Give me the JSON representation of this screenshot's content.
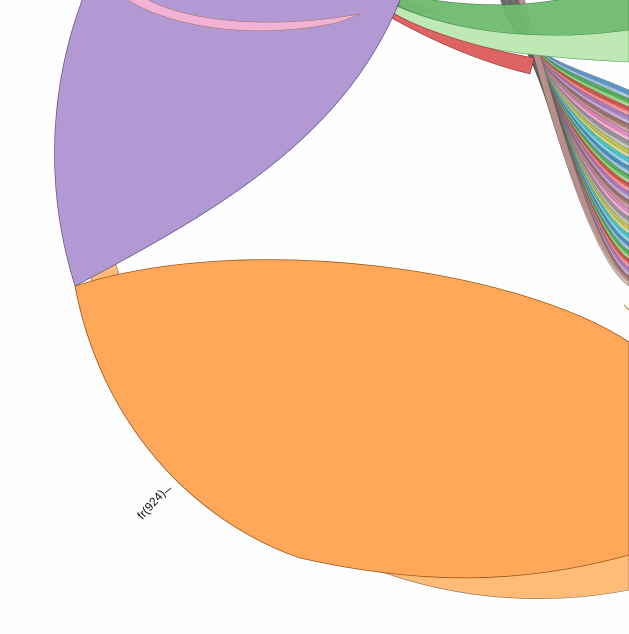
{
  "chart_data": {
    "type": "chord",
    "title": "",
    "groups": [
      {
        "name": "fr",
        "label": "fr(924)",
        "value": 924,
        "color": "#ffbb78"
      }
    ],
    "chords": [
      {
        "source": "fr",
        "target": "fr",
        "color": "#ffa85a",
        "description": "self-loop"
      },
      {
        "source": "fr",
        "target": "",
        "color": "#b399d4"
      },
      {
        "source": "",
        "target": "",
        "color": "#6fba6f"
      },
      {
        "source": "",
        "target": "",
        "color": "#bfe9b4"
      },
      {
        "source": "",
        "target": "",
        "color": "#de6464"
      }
    ],
    "bundle_colors": [
      "#1f77b4",
      "#aec7e8",
      "#2ca02c",
      "#98df8a",
      "#d62728",
      "#ff9896",
      "#9467bd",
      "#c5b0d5",
      "#8c564b",
      "#c49c94",
      "#e377c2",
      "#f7b6d2",
      "#7f7f7f",
      "#c7c7c7",
      "#bcbd22",
      "#dbdb8d",
      "#17becf",
      "#9edae5"
    ]
  }
}
